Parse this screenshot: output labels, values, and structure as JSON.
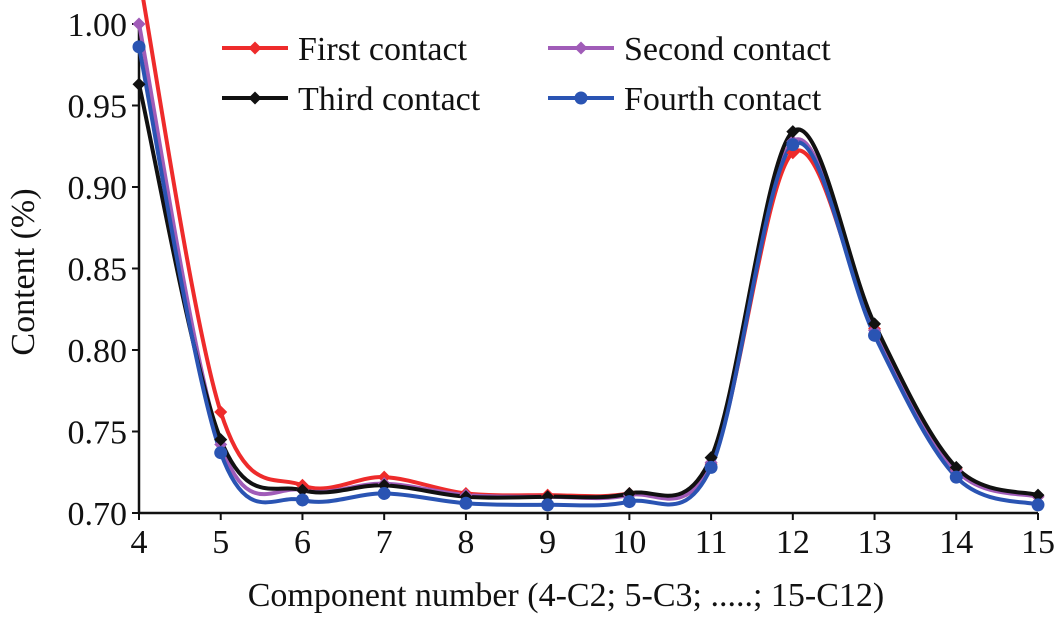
{
  "chart_data": {
    "type": "line",
    "xlabel": "Component number (4-C2; 5-C3; .....; 15-C12)",
    "ylabel": "Content (%)",
    "xlim": [
      4,
      15
    ],
    "ylim": [
      0.7,
      1.0
    ],
    "x": [
      4,
      5,
      6,
      7,
      8,
      9,
      10,
      11,
      12,
      13,
      14,
      15
    ],
    "xticks": [
      "4",
      "5",
      "6",
      "7",
      "8",
      "9",
      "10",
      "11",
      "12",
      "13",
      "14",
      "15"
    ],
    "yticks": [
      "0.70",
      "0.75",
      "0.80",
      "0.85",
      "0.90",
      "0.95",
      "1.00"
    ],
    "grid": false,
    "legend_position": "top",
    "series": [
      {
        "name": "First contact",
        "color": "#ee2b2b",
        "marker": "diamond",
        "values": [
          1.03,
          0.762,
          0.717,
          0.722,
          0.712,
          0.711,
          0.712,
          0.73,
          0.921,
          0.813,
          0.727,
          0.71
        ]
      },
      {
        "name": "Second contact",
        "color": "#a05cb8",
        "marker": "diamond",
        "values": [
          1.0,
          0.742,
          0.714,
          0.718,
          0.711,
          0.71,
          0.711,
          0.731,
          0.928,
          0.812,
          0.726,
          0.71
        ]
      },
      {
        "name": "Third contact",
        "color": "#111111",
        "marker": "diamond",
        "values": [
          0.963,
          0.745,
          0.714,
          0.717,
          0.71,
          0.71,
          0.712,
          0.734,
          0.934,
          0.816,
          0.728,
          0.711
        ]
      },
      {
        "name": "Fourth contact",
        "color": "#2a54b3",
        "marker": "circle",
        "values": [
          0.986,
          0.737,
          0.708,
          0.712,
          0.706,
          0.705,
          0.707,
          0.728,
          0.926,
          0.809,
          0.722,
          0.705
        ]
      }
    ]
  }
}
